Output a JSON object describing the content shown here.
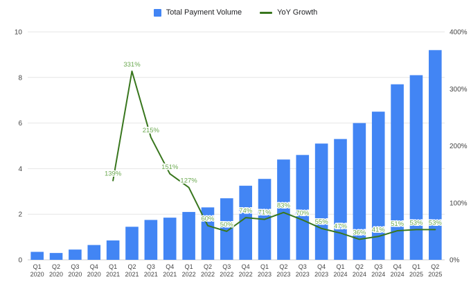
{
  "legend": {
    "items": [
      {
        "label": "Total Payment Volume",
        "type": "bar",
        "color": "#4285f4"
      },
      {
        "label": "YoY Growth",
        "type": "line",
        "color": "#38761d"
      }
    ]
  },
  "colors": {
    "bar": "#4285f4",
    "line": "#38761d",
    "data_label": "#6aa84f",
    "grid": "#e6e6e6",
    "baseline": "#cccccc",
    "axis_text": "#444444",
    "background": "#ffffff"
  },
  "chart_data": {
    "type": "combo",
    "title": "",
    "categories": [
      "Q1 2020",
      "Q2 2020",
      "Q3 2020",
      "Q4 2020",
      "Q1 2021",
      "Q2 2021",
      "Q3 2021",
      "Q4 2021",
      "Q1 2022",
      "Q2 2022",
      "Q3 2022",
      "Q4 2022",
      "Q1 2023",
      "Q2 2023",
      "Q3 2023",
      "Q4 2023",
      "Q1 2024",
      "Q2 2024",
      "Q3 2024",
      "Q4 2024",
      "Q1 2025",
      "Q2 2025"
    ],
    "series": [
      {
        "name": "Total Payment Volume",
        "type": "bar",
        "axis": "left",
        "color": "#4285f4",
        "values": [
          0.35,
          0.3,
          0.45,
          0.65,
          0.85,
          1.45,
          1.75,
          1.85,
          2.1,
          2.3,
          2.7,
          3.25,
          3.55,
          4.4,
          4.6,
          5.1,
          5.3,
          6.0,
          6.5,
          7.7,
          8.1,
          9.2
        ]
      },
      {
        "name": "YoY Growth",
        "type": "line",
        "axis": "right",
        "color": "#38761d",
        "values": [
          null,
          null,
          null,
          null,
          139,
          331,
          215,
          151,
          127,
          60,
          50,
          74,
          71,
          83,
          70,
          55,
          47,
          36,
          41,
          51,
          53,
          53
        ],
        "labels": [
          null,
          null,
          null,
          null,
          "139%",
          "331%",
          "215%",
          "151%",
          "127%",
          "60%",
          "50%",
          "74%",
          "71%",
          "83%",
          "70%",
          "55%",
          "47%",
          "36%",
          "41%",
          "51%",
          "53%",
          "53%"
        ]
      }
    ],
    "left_axis": {
      "min": 0,
      "max": 10,
      "ticks": [
        0,
        2,
        4,
        6,
        8,
        10
      ],
      "tick_labels": [
        "0",
        "2",
        "4",
        "6",
        "8",
        "10"
      ]
    },
    "right_axis": {
      "min": 0,
      "max": 400,
      "ticks": [
        0,
        100,
        200,
        300,
        400
      ],
      "tick_labels": [
        "0%",
        "100%",
        "200%",
        "300%",
        "400%"
      ]
    },
    "grid": true,
    "legend_position": "top"
  }
}
